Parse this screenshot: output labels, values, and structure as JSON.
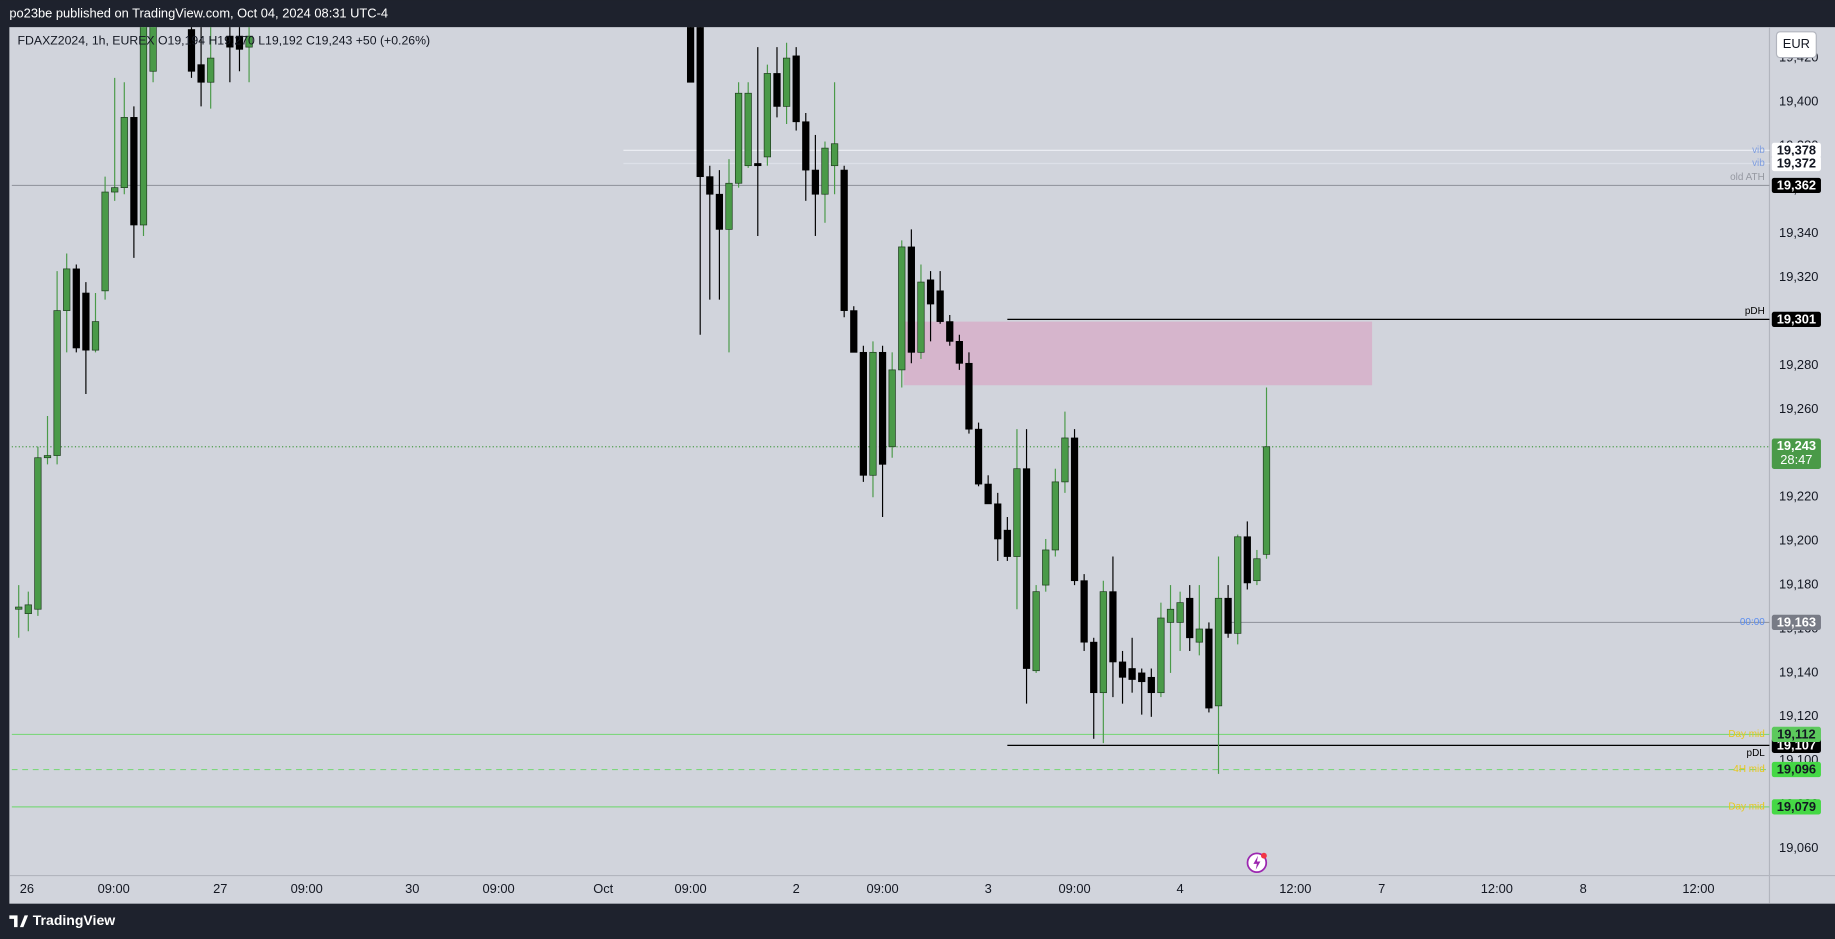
{
  "page": {
    "publisher_line": "po23be published on TradingView.com, Oct 04, 2024 08:31 UTC-4",
    "brand": "TradingView",
    "currency": "EUR"
  },
  "chart_data": {
    "type": "candlestick",
    "legend_text": "FDAXZ2024, 1h, EUREX  O19,194 H19,270 L19,192 C19,243 +50 (+0.26%)",
    "up_color": "#4a9a48",
    "down_color": "#000000",
    "grid": false,
    "xlim": [
      -0.73,
      182.4
    ],
    "xticks": [
      {
        "value": 0.85,
        "label": "26"
      },
      {
        "value": 9.9,
        "label": "09:00"
      },
      {
        "value": 21,
        "label": "27"
      },
      {
        "value": 30,
        "label": "09:00"
      },
      {
        "value": 41,
        "label": "30"
      },
      {
        "value": 50,
        "label": "09:00"
      },
      {
        "value": 60.9,
        "label": "Oct"
      },
      {
        "value": 70,
        "label": "09:00"
      },
      {
        "value": 81,
        "label": "2"
      },
      {
        "value": 90,
        "label": "09:00"
      },
      {
        "value": 101,
        "label": "3"
      },
      {
        "value": 110,
        "label": "09:00"
      },
      {
        "value": 121,
        "label": "4"
      },
      {
        "value": 133,
        "label": "12:00"
      },
      {
        "value": 142,
        "label": "7"
      },
      {
        "value": 154,
        "label": "12:00"
      },
      {
        "value": 163,
        "label": "8"
      },
      {
        "value": 175,
        "label": "12:00"
      }
    ],
    "ylim": [
      19047.7,
      19434.1
    ],
    "yticks": [
      {
        "value": 19060,
        "label": "19,060"
      },
      {
        "value": 19080,
        "label": "19,080"
      },
      {
        "value": 19100,
        "label": "19,100"
      },
      {
        "value": 19120,
        "label": "19,120"
      },
      {
        "value": 19140,
        "label": "19,140"
      },
      {
        "value": 19160,
        "label": "19,160"
      },
      {
        "value": 19180,
        "label": "19,180"
      },
      {
        "value": 19200,
        "label": "19,200"
      },
      {
        "value": 19220,
        "label": "19,220"
      },
      {
        "value": 19240,
        "label": "19,240"
      },
      {
        "value": 19260,
        "label": "19,260"
      },
      {
        "value": 19280,
        "label": "19,280"
      },
      {
        "value": 19300,
        "label": "19,300"
      },
      {
        "value": 19320,
        "label": "19,320"
      },
      {
        "value": 19340,
        "label": "19,340"
      },
      {
        "value": 19360,
        "label": "19,360"
      },
      {
        "value": 19380,
        "label": "19,380"
      },
      {
        "value": 19400,
        "label": "19,400"
      },
      {
        "value": 19420,
        "label": "19,420"
      }
    ],
    "open": [
      19169,
      19167,
      19169,
      19238,
      19239,
      19305,
      19324,
      19313,
      19287,
      19314,
      19359,
      19361,
      19393,
      19344,
      19414,
      null,
      null,
      null,
      19433,
      19417,
      19409,
      null,
      19430,
      19430,
      19425,
      null,
      null,
      null,
      null,
      null,
      null,
      null,
      null,
      null,
      null,
      null,
      null,
      null,
      null,
      null,
      null,
      null,
      null,
      null,
      null,
      null,
      null,
      null,
      null,
      null,
      null,
      null,
      null,
      null,
      null,
      null,
      null,
      null,
      null,
      null,
      null,
      null,
      null,
      null,
      null,
      null,
      null,
      null,
      null,
      null,
      19436,
      19436,
      19366,
      19358,
      19342,
      19363,
      19371,
      19372,
      19375,
      19413,
      19398,
      19421,
      19391,
      19369,
      19358,
      19371,
      19369,
      19305,
      19286,
      19230,
      19286,
      19243,
      19278,
      19334,
      19286,
      19319,
      19314,
      19300,
      19291,
      19281,
      19251,
      19226,
      19217,
      19205,
      19193,
      19233,
      19141,
      19180,
      19196,
      19227,
      19247,
      19182,
      19154,
      19131,
      19177,
      19145,
      19142,
      19140,
      19138,
      19131,
      19163,
      19163,
      19174,
      19154,
      19160,
      19125,
      19174,
      19158,
      19202,
      19182,
      19194
    ],
    "high": [
      19180,
      19177,
      19243,
      19257,
      19323,
      19331,
      19326,
      19318,
      19313,
      19366,
      19411,
      19409,
      19398,
      19441,
      19443,
      null,
      null,
      null,
      19438,
      19436,
      19436,
      null,
      19438,
      19436,
      19438,
      null,
      null,
      null,
      null,
      null,
      null,
      null,
      null,
      null,
      null,
      null,
      null,
      null,
      null,
      null,
      null,
      null,
      null,
      null,
      null,
      null,
      null,
      null,
      null,
      null,
      null,
      null,
      null,
      null,
      null,
      null,
      null,
      null,
      null,
      null,
      null,
      null,
      null,
      null,
      null,
      null,
      null,
      null,
      null,
      null,
      19438,
      19438,
      19371,
      19369,
      19374,
      19409,
      19409,
      19425,
      19417,
      19425,
      19427,
      19425,
      19395,
      19385,
      19382,
      19409,
      19371,
      19307,
      19289,
      19291,
      19289,
      19286,
      19337,
      19342,
      19326,
      19323,
      19323,
      19303,
      19294,
      19286,
      19254,
      19230,
      19222,
      19211,
      19251,
      19251,
      19180,
      19201,
      19233,
      19259,
      19251,
      19185,
      19156,
      19182,
      19193,
      19150,
      19156,
      19142,
      19142,
      19172,
      19180,
      19177,
      19180,
      19180,
      19163,
      19193,
      19180,
      19203,
      19209,
      19196,
      19270
    ],
    "low": [
      19156,
      19159,
      19166,
      19235,
      19235,
      19286,
      19286,
      19267,
      19286,
      19310,
      19355,
      19358,
      19329,
      19339,
      19409,
      null,
      null,
      null,
      19411,
      19398,
      19397,
      null,
      19409,
      19414,
      19409,
      null,
      null,
      null,
      null,
      null,
      null,
      null,
      null,
      null,
      null,
      null,
      null,
      null,
      null,
      null,
      null,
      null,
      null,
      null,
      null,
      null,
      null,
      null,
      null,
      null,
      null,
      null,
      null,
      null,
      null,
      null,
      null,
      null,
      null,
      null,
      null,
      null,
      null,
      null,
      null,
      null,
      null,
      null,
      null,
      null,
      19409,
      19294,
      19310,
      19310,
      19286,
      19361,
      19370,
      19339,
      19371,
      19393,
      19390,
      19387,
      19355,
      19339,
      19345,
      19358,
      19302,
      19286,
      19227,
      19220,
      19211,
      19238,
      19270,
      19281,
      19283,
      19291,
      19299,
      19289,
      19278,
      19249,
      19225,
      19217,
      19191,
      19191,
      19169,
      19126,
      19140,
      19177,
      19193,
      19222,
      19180,
      19150,
      19110,
      19108,
      19129,
      19126,
      19131,
      19121,
      19120,
      19129,
      19140,
      19150,
      19150,
      19148,
      19122,
      19094,
      19156,
      19153,
      19178,
      19180,
      19192
    ],
    "close": [
      19170,
      19171,
      19238,
      19239,
      19305,
      19324,
      19288,
      19287,
      19300,
      19359,
      19361,
      19393,
      19344,
      19436,
      19438,
      null,
      null,
      null,
      19414,
      19409,
      19420,
      null,
      19425,
      19424,
      19430,
      null,
      null,
      null,
      null,
      null,
      null,
      null,
      null,
      null,
      null,
      null,
      null,
      null,
      null,
      null,
      null,
      null,
      null,
      null,
      null,
      null,
      null,
      null,
      null,
      null,
      null,
      null,
      null,
      null,
      null,
      null,
      null,
      null,
      null,
      null,
      null,
      null,
      null,
      null,
      null,
      null,
      null,
      null,
      null,
      null,
      19409,
      19366,
      19358,
      19342,
      19363,
      19404,
      19404,
      19371,
      19413,
      19398,
      19420,
      19391,
      19369,
      19358,
      19379,
      19381,
      19305,
      19286,
      19230,
      19286,
      19235,
      19278,
      19334,
      19286,
      19318,
      19308,
      19300,
      19291,
      19281,
      19251,
      19226,
      19217,
      19201,
      19193,
      19233,
      19142,
      19177,
      19196,
      19227,
      19247,
      19182,
      19154,
      19131,
      19177,
      19145,
      19138,
      19137,
      19136,
      19131,
      19165,
      19169,
      19172,
      19156,
      19160,
      19124,
      19174,
      19158,
      19202,
      19181,
      19192,
      19243
    ],
    "zones": [
      {
        "top": 19300,
        "bottom": 19271,
        "from": 92.2,
        "to": 141,
        "color": "#d6b5cc"
      }
    ],
    "levels": [
      {
        "name": "vib",
        "price": {
          "value": 19378,
          "label": "19,378"
        },
        "line": "#eef0f5",
        "box": "#ffffff",
        "text": "#131722",
        "name_color": "#7f9ee0",
        "style": "solid",
        "from": 63,
        "name_side": "on"
      },
      {
        "name": "vib",
        "price": {
          "value": 19372,
          "label": "19,372"
        },
        "line": "#dde0e8",
        "box": "#ffffff",
        "text": "#131722",
        "name_color": "#7f9ee0",
        "style": "solid",
        "from": 63,
        "name_side": "on"
      },
      {
        "name": "old ATH",
        "price": {
          "value": 19362,
          "label": "19,362"
        },
        "line": "#9598a1",
        "box": "#000000",
        "text": "#ffffff",
        "name_color": "#9598a1",
        "style": "solid",
        "name_side": "above"
      },
      {
        "name": "pDH",
        "price": {
          "value": 19301,
          "label": "19,301"
        },
        "line": "#000000",
        "box": "#000000",
        "text": "#ffffff",
        "name_color": "#000000",
        "style": "solid",
        "from": 103,
        "name_side": "above"
      },
      {
        "name": "00:00",
        "price": {
          "value": 19163,
          "label": "19,163"
        },
        "line": "#9598a1",
        "box": "#787b86",
        "text": "#ffffff",
        "name_color": "#5b8def",
        "style": "solid",
        "from": 126,
        "name_side": "on"
      },
      {
        "name": "pDL",
        "price": {
          "value": 19107,
          "label": "19,107"
        },
        "line": "#000000",
        "box": "#000000",
        "text": "#ffffff",
        "name_color": "#000000",
        "style": "solid",
        "from": 103,
        "name_side": "below"
      },
      {
        "name": "Day mid",
        "price": {
          "value": 19112,
          "label": "19,112"
        },
        "line": "#7ed67e",
        "box": "#5cc95c",
        "text": "#131722",
        "name_color": "#e8c81a",
        "style": "solid",
        "name_side": "on"
      },
      {
        "name": "4H mid",
        "price": {
          "value": 19096,
          "label": "19,096"
        },
        "line": "#7ed67e",
        "box": "#45d845",
        "text": "#131722",
        "name_color": "#e8c81a",
        "style": "dashed",
        "name_side": "on"
      },
      {
        "name": "Day mid",
        "price": {
          "value": 19079,
          "label": "19,079"
        },
        "line": "#7ed67e",
        "box": "#45d845",
        "text": "#131722",
        "name_color": "#e8c81a",
        "style": "solid",
        "name_side": "on"
      }
    ],
    "last_price": {
      "value": 19243,
      "label": "19,243"
    },
    "last_color": "#4a9a48",
    "countdown": "28:47"
  }
}
